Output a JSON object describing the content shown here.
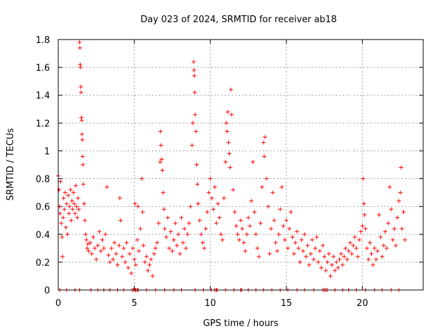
{
  "chart_data": {
    "type": "scatter",
    "title": "Day 023 of 2024, SRMTID for receiver ab18",
    "xlabel": "GPS time / hours",
    "ylabel": "SRMTID / TECUs",
    "xlim": [
      0,
      24
    ],
    "ylim": [
      0,
      1.8
    ],
    "xticks": [
      0,
      5,
      10,
      15,
      20
    ],
    "yticks": [
      0,
      0.2,
      0.4,
      0.6,
      0.8,
      1,
      1.2,
      1.4,
      1.6,
      1.8
    ],
    "xtick_labels": [
      "0",
      "5",
      "10",
      "15",
      "20"
    ],
    "ytick_labels": [
      "0",
      "0.2",
      "0.4",
      "0.6",
      "0.8",
      "1",
      "1.2",
      "1.4",
      "1.6",
      "1.8"
    ],
    "grid": true,
    "marker": "+",
    "series": [
      {
        "name": "SRMTID",
        "color": "#ff0000",
        "points": [
          [
            0.0,
            0.82
          ],
          [
            0.05,
            0.72
          ],
          [
            0.08,
            0.6
          ],
          [
            0.12,
            0.55
          ],
          [
            0.15,
            0.78
          ],
          [
            0.2,
            0.48
          ],
          [
            0.25,
            0.38
          ],
          [
            0.28,
            0.24
          ],
          [
            0.32,
            0.52
          ],
          [
            0.35,
            0.66
          ],
          [
            0.4,
            0.58
          ],
          [
            0.45,
            0.7
          ],
          [
            0.5,
            0.45
          ],
          [
            0.55,
            0.62
          ],
          [
            0.6,
            0.4
          ],
          [
            0.65,
            0.68
          ],
          [
            0.7,
            0.55
          ],
          [
            0.75,
            0.6
          ],
          [
            0.8,
            0.72
          ],
          [
            0.85,
            0.5
          ],
          [
            0.9,
            0.64
          ],
          [
            0.95,
            0.58
          ],
          [
            1.0,
            0.7
          ],
          [
            1.05,
            0.62
          ],
          [
            1.1,
            0.55
          ],
          [
            1.15,
            0.75
          ],
          [
            1.2,
            0.6
          ],
          [
            1.25,
            0.52
          ],
          [
            1.3,
            0.66
          ],
          [
            1.35,
            0.58
          ],
          [
            1.4,
            1.78
          ],
          [
            1.42,
            1.74
          ],
          [
            1.44,
            1.62
          ],
          [
            1.46,
            1.6
          ],
          [
            1.48,
            1.46
          ],
          [
            1.5,
            1.42
          ],
          [
            1.52,
            1.24
          ],
          [
            1.54,
            1.22
          ],
          [
            1.56,
            1.12
          ],
          [
            1.58,
            1.08
          ],
          [
            1.6,
            0.96
          ],
          [
            1.62,
            0.9
          ],
          [
            1.65,
            0.76
          ],
          [
            1.7,
            0.62
          ],
          [
            1.75,
            0.5
          ],
          [
            1.8,
            0.4
          ],
          [
            1.85,
            0.36
          ],
          [
            1.9,
            0.3
          ],
          [
            1.95,
            0.33
          ],
          [
            2.0,
            0.28
          ],
          [
            2.1,
            0.34
          ],
          [
            2.2,
            0.26
          ],
          [
            2.3,
            0.38
          ],
          [
            2.4,
            0.3
          ],
          [
            2.5,
            0.22
          ],
          [
            2.6,
            0.32
          ],
          [
            2.7,
            0.42
          ],
          [
            2.8,
            0.28
          ],
          [
            2.9,
            0.36
          ],
          [
            3.0,
            0.3
          ],
          [
            3.1,
            0.4
          ],
          [
            3.2,
            0.74
          ],
          [
            3.3,
            0.25
          ],
          [
            3.4,
            0.2
          ],
          [
            3.5,
            0.3
          ],
          [
            3.6,
            0.22
          ],
          [
            3.7,
            0.34
          ],
          [
            3.8,
            0.26
          ],
          [
            3.9,
            0.18
          ],
          [
            4.0,
            0.32
          ],
          [
            4.05,
            0.66
          ],
          [
            4.1,
            0.5
          ],
          [
            4.2,
            0.24
          ],
          [
            4.3,
            0.3
          ],
          [
            4.4,
            0.2
          ],
          [
            4.5,
            0.34
          ],
          [
            4.6,
            0.16
          ],
          [
            4.7,
            0.26
          ],
          [
            4.8,
            0.12
          ],
          [
            4.9,
            0.3
          ],
          [
            5.0,
            0.22
          ],
          [
            5.05,
            0.62
          ],
          [
            5.1,
            0.18
          ],
          [
            5.2,
            0.36
          ],
          [
            5.25,
            0.6
          ],
          [
            5.3,
            0.28
          ],
          [
            5.4,
            0.44
          ],
          [
            5.5,
            0.8
          ],
          [
            5.55,
            0.56
          ],
          [
            5.6,
            0.32
          ],
          [
            5.7,
            0.2
          ],
          [
            5.8,
            0.24
          ],
          [
            5.9,
            0.14
          ],
          [
            6.0,
            0.18
          ],
          [
            6.1,
            0.22
          ],
          [
            6.2,
            0.1
          ],
          [
            6.3,
            0.26
          ],
          [
            6.4,
            0.3
          ],
          [
            6.5,
            0.34
          ],
          [
            6.6,
            0.48
          ],
          [
            6.7,
            0.92
          ],
          [
            6.72,
            1.14
          ],
          [
            6.75,
            1.04
          ],
          [
            6.8,
            0.94
          ],
          [
            6.85,
            0.86
          ],
          [
            6.9,
            0.7
          ],
          [
            6.95,
            0.58
          ],
          [
            7.0,
            0.44
          ],
          [
            7.1,
            0.38
          ],
          [
            7.2,
            0.52
          ],
          [
            7.3,
            0.3
          ],
          [
            7.4,
            0.42
          ],
          [
            7.5,
            0.28
          ],
          [
            7.6,
            0.36
          ],
          [
            7.7,
            0.48
          ],
          [
            7.8,
            0.32
          ],
          [
            7.9,
            0.4
          ],
          [
            8.0,
            0.26
          ],
          [
            8.1,
            0.52
          ],
          [
            8.2,
            0.34
          ],
          [
            8.3,
            0.44
          ],
          [
            8.4,
            0.3
          ],
          [
            8.5,
            0.4
          ],
          [
            8.6,
            0.48
          ],
          [
            8.7,
            0.6
          ],
          [
            8.8,
            1.04
          ],
          [
            8.85,
            1.2
          ],
          [
            8.9,
            1.64
          ],
          [
            8.93,
            1.58
          ],
          [
            8.95,
            1.54
          ],
          [
            8.98,
            1.42
          ],
          [
            9.0,
            1.26
          ],
          [
            9.05,
            1.14
          ],
          [
            9.1,
            0.9
          ],
          [
            9.15,
            0.76
          ],
          [
            9.2,
            0.62
          ],
          [
            9.3,
            0.5
          ],
          [
            9.4,
            0.4
          ],
          [
            9.5,
            0.34
          ],
          [
            9.6,
            0.3
          ],
          [
            9.7,
            0.44
          ],
          [
            9.8,
            0.56
          ],
          [
            9.9,
            0.7
          ],
          [
            10.0,
            0.8
          ],
          [
            10.1,
            0.66
          ],
          [
            10.2,
            0.58
          ],
          [
            10.3,
            0.74
          ],
          [
            10.4,
            0.48
          ],
          [
            10.5,
            0.62
          ],
          [
            10.6,
            0.52
          ],
          [
            10.7,
            0.4
          ],
          [
            10.8,
            0.36
          ],
          [
            10.9,
            0.66
          ],
          [
            11.0,
            0.92
          ],
          [
            11.05,
            1.2
          ],
          [
            11.1,
            1.14
          ],
          [
            11.15,
            1.28
          ],
          [
            11.2,
            1.06
          ],
          [
            11.25,
            0.98
          ],
          [
            11.3,
            0.88
          ],
          [
            11.35,
            1.44
          ],
          [
            11.4,
            1.26
          ],
          [
            11.5,
            0.72
          ],
          [
            11.6,
            0.56
          ],
          [
            11.7,
            0.46
          ],
          [
            11.8,
            0.4
          ],
          [
            11.9,
            0.36
          ],
          [
            12.0,
            0.5
          ],
          [
            12.1,
            0.44
          ],
          [
            12.2,
            0.34
          ],
          [
            12.3,
            0.28
          ],
          [
            12.4,
            0.4
          ],
          [
            12.5,
            0.52
          ],
          [
            12.6,
            0.46
          ],
          [
            12.7,
            0.64
          ],
          [
            12.8,
            0.92
          ],
          [
            12.9,
            0.56
          ],
          [
            13.0,
            0.4
          ],
          [
            13.1,
            0.3
          ],
          [
            13.2,
            0.24
          ],
          [
            13.3,
            0.48
          ],
          [
            13.4,
            0.74
          ],
          [
            13.5,
            1.06
          ],
          [
            13.55,
            0.96
          ],
          [
            13.6,
            1.1
          ],
          [
            13.7,
            0.8
          ],
          [
            13.8,
            0.6
          ],
          [
            13.9,
            0.26
          ],
          [
            14.0,
            0.44
          ],
          [
            14.1,
            0.7
          ],
          [
            14.2,
            0.5
          ],
          [
            14.3,
            0.34
          ],
          [
            14.4,
            0.28
          ],
          [
            14.5,
            0.4
          ],
          [
            14.6,
            0.58
          ],
          [
            14.7,
            0.74
          ],
          [
            14.8,
            0.46
          ],
          [
            14.9,
            0.36
          ],
          [
            15.0,
            0.5
          ],
          [
            15.1,
            0.3
          ],
          [
            15.2,
            0.44
          ],
          [
            15.3,
            0.56
          ],
          [
            15.4,
            0.38
          ],
          [
            15.5,
            0.26
          ],
          [
            15.6,
            0.34
          ],
          [
            15.7,
            0.42
          ],
          [
            15.8,
            0.3
          ],
          [
            15.9,
            0.2
          ],
          [
            16.0,
            0.36
          ],
          [
            16.1,
            0.28
          ],
          [
            16.2,
            0.4
          ],
          [
            16.3,
            0.24
          ],
          [
            16.4,
            0.32
          ],
          [
            16.5,
            0.18
          ],
          [
            16.6,
            0.26
          ],
          [
            16.7,
            0.36
          ],
          [
            16.8,
            0.22
          ],
          [
            16.9,
            0.3
          ],
          [
            17.0,
            0.38
          ],
          [
            17.1,
            0.2
          ],
          [
            17.2,
            0.28
          ],
          [
            17.3,
            0.16
          ],
          [
            17.4,
            0.32
          ],
          [
            17.5,
            0.24
          ],
          [
            17.6,
            0.14
          ],
          [
            17.7,
            0.2
          ],
          [
            17.8,
            0.26
          ],
          [
            17.9,
            0.1
          ],
          [
            18.0,
            0.18
          ],
          [
            18.1,
            0.24
          ],
          [
            18.2,
            0.14
          ],
          [
            18.3,
            0.2
          ],
          [
            18.4,
            0.16
          ],
          [
            18.5,
            0.22
          ],
          [
            18.6,
            0.26
          ],
          [
            18.7,
            0.18
          ],
          [
            18.8,
            0.24
          ],
          [
            18.9,
            0.3
          ],
          [
            19.0,
            0.22
          ],
          [
            19.1,
            0.28
          ],
          [
            19.2,
            0.34
          ],
          [
            19.3,
            0.26
          ],
          [
            19.4,
            0.32
          ],
          [
            19.5,
            0.38
          ],
          [
            19.6,
            0.3
          ],
          [
            19.7,
            0.24
          ],
          [
            19.8,
            0.36
          ],
          [
            19.9,
            0.42
          ],
          [
            20.0,
            0.46
          ],
          [
            20.05,
            0.8
          ],
          [
            20.1,
            0.62
          ],
          [
            20.15,
            0.54
          ],
          [
            20.2,
            0.44
          ],
          [
            20.3,
            0.3
          ],
          [
            20.4,
            0.22
          ],
          [
            20.5,
            0.34
          ],
          [
            20.6,
            0.26
          ],
          [
            20.7,
            0.18
          ],
          [
            20.8,
            0.3
          ],
          [
            20.9,
            0.22
          ],
          [
            21.0,
            0.28
          ],
          [
            21.1,
            0.54
          ],
          [
            21.2,
            0.38
          ],
          [
            21.3,
            0.24
          ],
          [
            21.4,
            0.32
          ],
          [
            21.5,
            0.42
          ],
          [
            21.6,
            0.3
          ],
          [
            21.7,
            0.48
          ],
          [
            21.8,
            0.74
          ],
          [
            21.9,
            0.58
          ],
          [
            22.0,
            0.36
          ],
          [
            22.1,
            0.44
          ],
          [
            22.2,
            0.32
          ],
          [
            22.3,
            0.52
          ],
          [
            22.4,
            0.64
          ],
          [
            22.5,
            0.7
          ],
          [
            22.55,
            0.88
          ],
          [
            22.6,
            0.44
          ],
          [
            22.7,
            0.56
          ],
          [
            22.8,
            0.36
          ]
        ],
        "zero_points": [
          0.1,
          0.55,
          1.1,
          1.4,
          2.15,
          2.6,
          3.0,
          3.4,
          3.9,
          4.3,
          4.85,
          4.95,
          5.05,
          5.1,
          5.2,
          5.25,
          5.8,
          6.4,
          7.0,
          7.6,
          8.1,
          9.0,
          9.55,
          10.05,
          10.3,
          10.4,
          10.45,
          11.0,
          11.55,
          12.0,
          12.05,
          12.5,
          13.0,
          13.5,
          14.05,
          14.6,
          15.1,
          15.7,
          16.2,
          16.8,
          17.4,
          17.5,
          17.6,
          17.7,
          18.2,
          18.7,
          19.1,
          19.6,
          20.2,
          20.8,
          21.3,
          21.9,
          22.4
        ]
      }
    ]
  }
}
